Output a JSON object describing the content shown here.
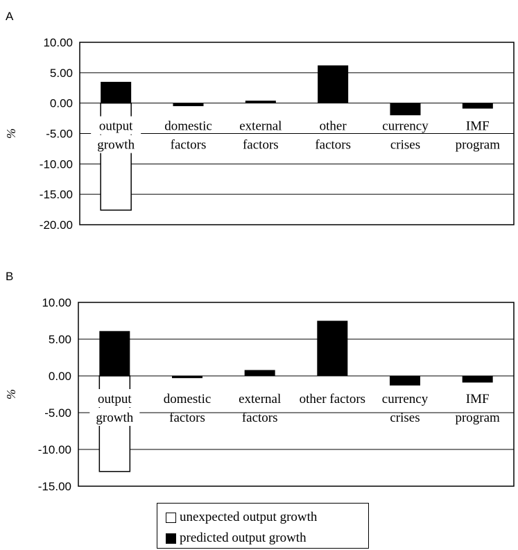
{
  "colors": {
    "predicted": "#000000",
    "unexpected": "#ffffff",
    "grid": "#000000"
  },
  "legend": {
    "unexpected_label": "unexpected output growth",
    "predicted_label": "predicted output growth"
  },
  "chart_data": [
    {
      "panel": "A",
      "type": "bar",
      "ylabel": "%",
      "ylim": [
        -20,
        10
      ],
      "yticks": [
        "10.00",
        "5.00",
        "0.00",
        "-5.00",
        "-10.00",
        "-15.00",
        "-20.00"
      ],
      "grid": true,
      "categories": [
        [
          "output",
          "growth"
        ],
        [
          "domestic",
          "factors"
        ],
        [
          "external",
          "factors"
        ],
        [
          "other",
          "factors"
        ],
        [
          "currency",
          "crises"
        ],
        [
          "IMF",
          "program"
        ]
      ],
      "series": [
        {
          "name": "predicted output growth",
          "values": [
            3.5,
            -0.5,
            0.4,
            6.2,
            -2.0,
            -0.9
          ]
        },
        {
          "name": "unexpected output growth",
          "values": [
            -17.6,
            null,
            null,
            null,
            null,
            null
          ]
        }
      ]
    },
    {
      "panel": "B",
      "type": "bar",
      "ylabel": "%",
      "ylim": [
        -15,
        10
      ],
      "yticks": [
        "10.00",
        "5.00",
        "0.00",
        "-5.00",
        "-10.00",
        "-15.00"
      ],
      "grid": true,
      "categories": [
        [
          "output",
          "growth"
        ],
        [
          "domestic",
          "factors"
        ],
        [
          "external",
          "factors"
        ],
        [
          "other factors"
        ],
        [
          "currency",
          "crises"
        ],
        [
          "IMF",
          "program"
        ]
      ],
      "series": [
        {
          "name": "predicted output growth",
          "values": [
            6.1,
            -0.3,
            0.8,
            7.5,
            -1.3,
            -0.9
          ]
        },
        {
          "name": "unexpected output growth",
          "values": [
            -13.0,
            null,
            null,
            null,
            null,
            null
          ]
        }
      ]
    }
  ]
}
